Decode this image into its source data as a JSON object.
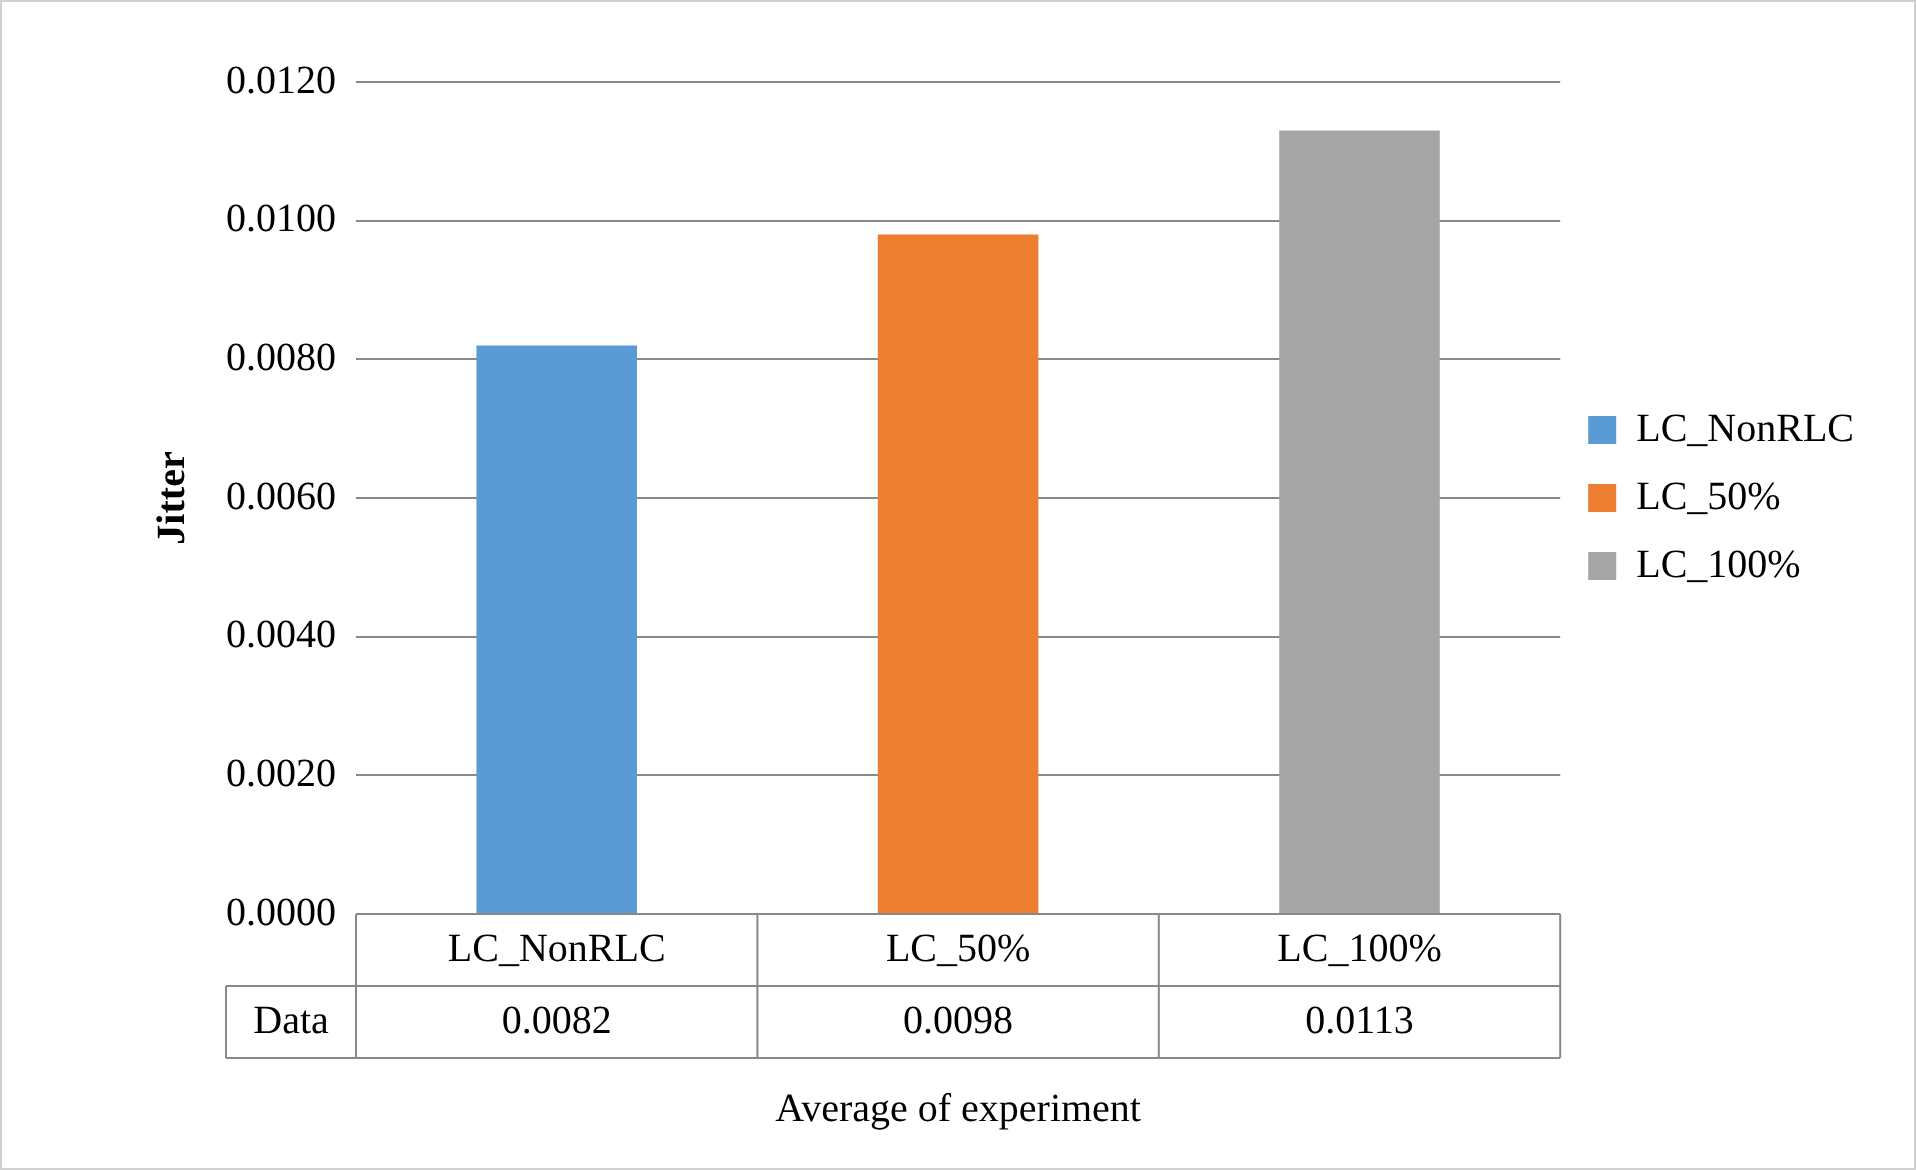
{
  "chart_data": {
    "type": "bar",
    "xlabel": "Average of experiment",
    "ylabel": "Jitter",
    "categories": [
      "LC_NonRLC",
      "LC_50%",
      "LC_100%"
    ],
    "series": [
      {
        "name": "LC_NonRLC",
        "color": "#5b9bd5",
        "values": [
          0.0082,
          null,
          null
        ]
      },
      {
        "name": "LC_50%",
        "color": "#ed7d31",
        "values": [
          null,
          0.0098,
          null
        ]
      },
      {
        "name": "LC_100%",
        "color": "#a5a5a5",
        "values": [
          null,
          null,
          0.0113
        ]
      }
    ],
    "ylim": [
      0,
      0.012
    ],
    "yticks": [
      {
        "value": 0,
        "label": "0.0000"
      },
      {
        "value": 0.002,
        "label": "0.0020"
      },
      {
        "value": 0.004,
        "label": "0.0040"
      },
      {
        "value": 0.006,
        "label": "0.0060"
      },
      {
        "value": 0.008,
        "label": "0.0080"
      },
      {
        "value": 0.01,
        "label": "0.0100"
      },
      {
        "value": 0.012,
        "label": "0.0120"
      }
    ],
    "grid": true,
    "legend": "right",
    "data_labels": true,
    "annotations": [
      "Data"
    ]
  }
}
